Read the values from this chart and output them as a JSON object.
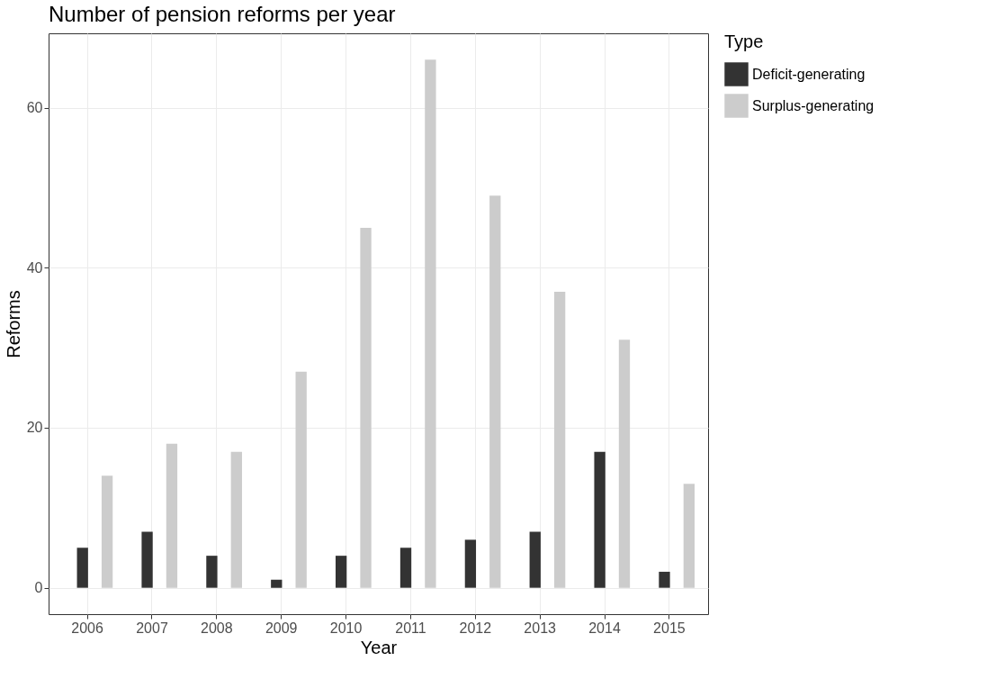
{
  "chart_data": {
    "type": "bar",
    "title": "Number of pension reforms per year",
    "xlabel": "Year",
    "ylabel": "Reforms",
    "legend_title": "Type",
    "categories": [
      "2006",
      "2007",
      "2008",
      "2009",
      "2010",
      "2011",
      "2012",
      "2013",
      "2014",
      "2015"
    ],
    "series": [
      {
        "name": "Deficit-generating",
        "color": "#333333",
        "values": [
          5,
          7,
          4,
          1,
          4,
          5,
          6,
          7,
          17,
          2
        ]
      },
      {
        "name": "Surplus-generating",
        "color": "#cccccc",
        "values": [
          14,
          18,
          17,
          27,
          45,
          66,
          49,
          37,
          31,
          13
        ]
      }
    ],
    "ylim": [
      -3.3,
      69.3
    ],
    "yticks": [
      0,
      20,
      40,
      60
    ],
    "grid": true,
    "legend": "right"
  }
}
